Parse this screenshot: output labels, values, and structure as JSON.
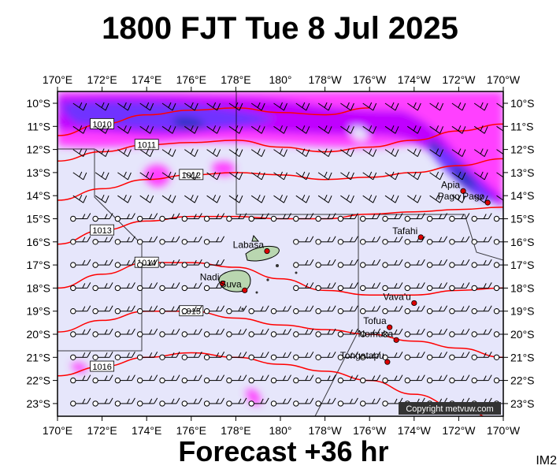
{
  "header": {
    "title": "1800 FJT Tue 8 Jul 2025"
  },
  "footer": {
    "forecast": "Forecast +36 hr",
    "code": "IM2",
    "copyright": "Copyright metvuw.com"
  },
  "map": {
    "lon_labels": [
      "170°E",
      "172°E",
      "174°E",
      "176°E",
      "178°E",
      "180°",
      "178°W",
      "176°W",
      "174°W",
      "172°W",
      "170°W"
    ],
    "lat_labels": [
      "10°S",
      "11°S",
      "12°S",
      "13°S",
      "14°S",
      "15°S",
      "16°S",
      "17°S",
      "18°S",
      "19°S",
      "20°S",
      "21°S",
      "22°S",
      "23°S"
    ],
    "colors": {
      "ocean": "#e6e6fb",
      "isobar": "#ff0000",
      "rain_light": "#ff33ff",
      "rain_mid": "#cc00ff",
      "rain_heavy": "#6633ff",
      "rain_core": "#3333cc",
      "land": "#b9d6b0",
      "wind": "#000000"
    },
    "isobars": [
      {
        "label": "1010",
        "points": [
          [
            170,
            11.4
          ],
          [
            172,
            10.9
          ],
          [
            174,
            10.5
          ],
          [
            176,
            10.3
          ],
          [
            178,
            10.2
          ],
          [
            180,
            10.4
          ],
          [
            -178,
            10.5
          ],
          [
            -176,
            10.2
          ]
        ]
      },
      {
        "label": "1011",
        "points": [
          [
            170,
            12.5
          ],
          [
            172,
            12.1
          ],
          [
            174,
            11.8
          ],
          [
            176,
            11.7
          ],
          [
            178,
            11.6
          ],
          [
            180,
            11.9
          ],
          [
            -178,
            12.1
          ],
          [
            -176,
            11.9
          ],
          [
            -174,
            11.6
          ],
          [
            -172,
            11.2
          ],
          [
            -170,
            10.9
          ]
        ]
      },
      {
        "label": "1012",
        "points": [
          [
            170,
            14.2
          ],
          [
            172,
            13.7
          ],
          [
            174,
            13.3
          ],
          [
            176,
            13.1
          ],
          [
            178,
            13.0
          ],
          [
            180,
            13.1
          ],
          [
            -178,
            13.3
          ],
          [
            -176,
            13.2
          ],
          [
            -174,
            13.0
          ],
          [
            -172,
            12.7
          ],
          [
            -170,
            12.4
          ]
        ]
      },
      {
        "label": "1013",
        "points": [
          [
            170,
            16.1
          ],
          [
            172,
            15.5
          ],
          [
            174,
            15.1
          ],
          [
            176,
            14.9
          ],
          [
            178,
            14.9
          ],
          [
            180,
            15.0
          ],
          [
            -178,
            15.0
          ],
          [
            -176,
            14.8
          ],
          [
            -174,
            14.7
          ],
          [
            -172,
            14.6
          ],
          [
            -170,
            14.5
          ]
        ]
      },
      {
        "label": "1014",
        "points": [
          [
            170,
            18.0
          ],
          [
            172,
            17.4
          ],
          [
            174,
            16.9
          ],
          [
            176,
            16.9
          ],
          [
            178,
            17.1
          ],
          [
            180,
            17.6
          ],
          [
            -178,
            18.1
          ],
          [
            -176,
            18.3
          ],
          [
            -174,
            18.3
          ],
          [
            -172,
            18.1
          ],
          [
            -170,
            18.0
          ]
        ]
      },
      {
        "label": "1015",
        "points": [
          [
            170,
            19.9
          ],
          [
            172,
            19.4
          ],
          [
            174,
            19.0
          ],
          [
            176,
            19.0
          ],
          [
            178,
            19.3
          ],
          [
            180,
            19.6
          ],
          [
            -178,
            19.8
          ],
          [
            -176,
            20.0
          ],
          [
            -174,
            20.3
          ],
          [
            -172,
            20.6
          ],
          [
            -170,
            21.0
          ]
        ]
      },
      {
        "label": "1016",
        "points": [
          [
            170,
            21.8
          ],
          [
            172,
            21.4
          ],
          [
            174,
            21.0
          ],
          [
            176,
            20.8
          ],
          [
            178,
            21.0
          ],
          [
            180,
            21.3
          ],
          [
            -178,
            21.6
          ],
          [
            -176,
            22.0
          ],
          [
            -174,
            22.6
          ],
          [
            -172,
            23.2
          ],
          [
            -170,
            23.8
          ]
        ]
      }
    ],
    "places": [
      {
        "name": "Apia",
        "lon": -171.8,
        "lat": 13.8
      },
      {
        "name": "Pago Pago",
        "lon": -170.7,
        "lat": 14.3
      },
      {
        "name": "Tafahi",
        "lon": -173.7,
        "lat": 15.8
      },
      {
        "name": "Labasa",
        "lon": 179.4,
        "lat": 16.4
      },
      {
        "name": "Nadi",
        "lon": 177.4,
        "lat": 17.8
      },
      {
        "name": "Suva",
        "lon": 178.4,
        "lat": 18.1
      },
      {
        "name": "Vava'u",
        "lon": -174.0,
        "lat": 18.65
      },
      {
        "name": "Tofua",
        "lon": -175.1,
        "lat": 19.7
      },
      {
        "name": "Nomuka",
        "lon": -174.8,
        "lat": 20.25
      },
      {
        "name": "Tongatapu",
        "lon": -175.2,
        "lat": 21.2
      }
    ]
  }
}
